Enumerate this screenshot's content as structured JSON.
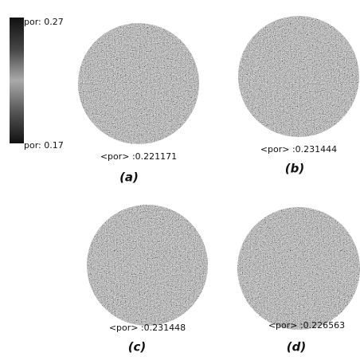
{
  "colorbar": {
    "max_label": "por: 0.27",
    "min_label": "por: 0.17"
  },
  "panels": [
    {
      "mean_label": "<por> :0.221171",
      "caption": "(a)"
    },
    {
      "mean_label": "<por> :0.231444",
      "caption": "(b)"
    },
    {
      "mean_label": "<por> :0.231448",
      "caption": "(c)"
    },
    {
      "mean_label": "<por> :0.226563",
      "caption": "(d)"
    }
  ]
}
